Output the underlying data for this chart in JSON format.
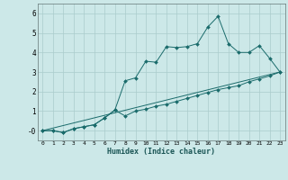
{
  "xlabel": "Humidex (Indice chaleur)",
  "background_color": "#cce8e8",
  "grid_color": "#aacccc",
  "line_color": "#1a6b6b",
  "xlim": [
    -0.5,
    23.5
  ],
  "ylim": [
    -0.5,
    6.5
  ],
  "xtick_labels": [
    "0",
    "1",
    "2",
    "3",
    "4",
    "5",
    "6",
    "7",
    "8",
    "9",
    "10",
    "11",
    "12",
    "13",
    "14",
    "15",
    "16",
    "17",
    "18",
    "19",
    "20",
    "21",
    "22",
    "23"
  ],
  "ytick_labels": [
    "-0",
    "1",
    "2",
    "3",
    "4",
    "5",
    "6"
  ],
  "ytick_values": [
    0,
    1,
    2,
    3,
    4,
    5,
    6
  ],
  "line1_x": [
    0,
    1,
    2,
    3,
    4,
    5,
    6,
    7,
    8,
    9,
    10,
    11,
    12,
    13,
    14,
    15,
    16,
    17,
    18,
    19,
    20,
    21,
    22,
    23
  ],
  "line1_y": [
    0,
    0,
    -0.1,
    0.1,
    0.2,
    0.3,
    0.65,
    1.05,
    2.55,
    2.7,
    3.55,
    3.5,
    4.3,
    4.25,
    4.3,
    4.45,
    5.3,
    5.85,
    4.45,
    4.0,
    4.0,
    4.35,
    3.7,
    3.0
  ],
  "line2_x": [
    0,
    1,
    2,
    3,
    4,
    5,
    6,
    7,
    8,
    9,
    10,
    11,
    12,
    13,
    14,
    15,
    16,
    17,
    18,
    19,
    20,
    21,
    22,
    23
  ],
  "line2_y": [
    0,
    0,
    -0.1,
    0.1,
    0.2,
    0.3,
    0.65,
    1.05,
    0.75,
    1.0,
    1.1,
    1.25,
    1.35,
    1.5,
    1.65,
    1.8,
    1.95,
    2.1,
    2.2,
    2.3,
    2.5,
    2.65,
    2.8,
    3.0
  ],
  "line3_x": [
    0,
    23
  ],
  "line3_y": [
    0,
    3.0
  ]
}
